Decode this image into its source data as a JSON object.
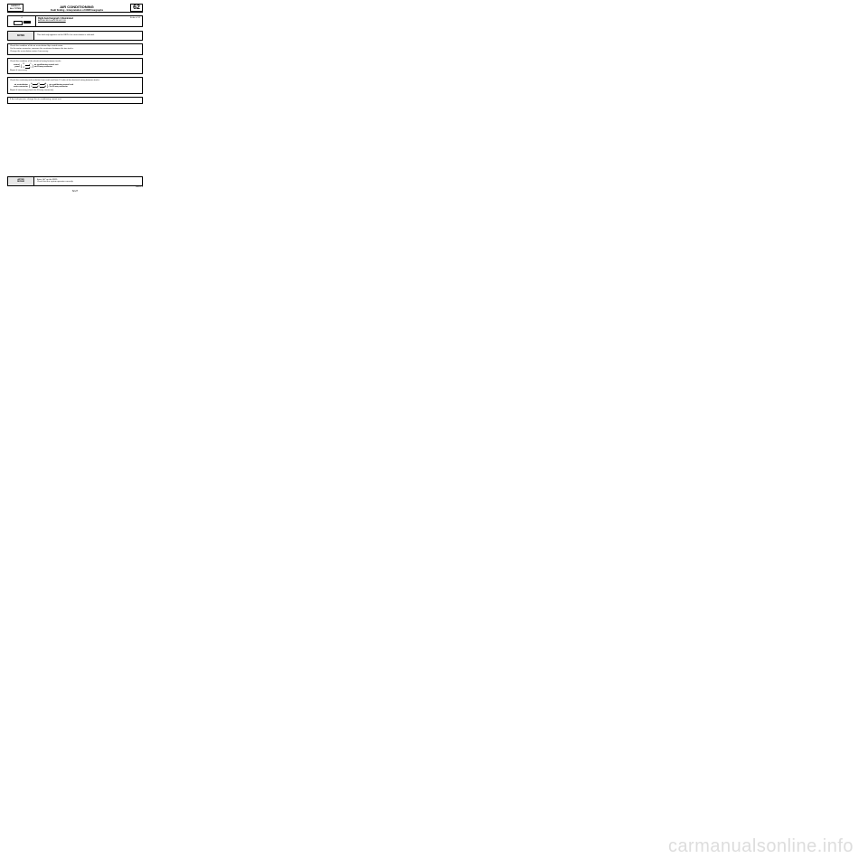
{
  "header": {
    "left": "CA05DCC\nALL TYPES",
    "title": "AIR CONDITIONING",
    "subtitle": "Fault finding - Interpretation of XR25 bargraphs",
    "section_number": "62"
  },
  "bargraph": {
    "number": "4",
    "title": "Right-hand  bargraph  4  illuminated",
    "subtitle": "AIR RECIRCULATION MOTOR",
    "fiche": "Fiche n° 61"
  },
  "notes": {
    "label": "NOTES",
    "text": "This fault only appears on the XR25 if air recirculation is selected."
  },
  "step1": {
    "l1": "Check the condition of the air recirculation flap control motor.",
    "l2": "On the motor connector, measure the resistance between the two tracks.",
    "l3": "Change the recirculation motor if necessary."
  },
  "step2": {
    "l1": "Check the condition of the electrical wiring between tracks:",
    "left_label": "control\npanel",
    "rows": [
      {
        "a": "21",
        "b": "1"
      },
      {
        "a": "22",
        "b": "2"
      }
    ],
    "right_label": "air conditioning control unit\nvia 30-way connector",
    "l2": "Repair if necessary."
  },
  "step3": {
    "l1": "Check the continuity and insulation from earth and from 12 volts of the electrical wiring between tracks:",
    "left_label": "air recirculation\nmotor connector",
    "rows": [
      {
        "a": "A",
        "b": "21",
        "c": "A"
      },
      {
        "a": "B",
        "b": "22",
        "c": "B"
      }
    ],
    "right_label": "air conditioning control unit\nVia 30-way connector",
    "l2": "Repair if necessary (check the 30-way connector)."
  },
  "step4": {
    "text": "If the fault persists, change the air conditioning control unit."
  },
  "after": {
    "label": "AFTER\nREPAIR",
    "l1": "Enter G0* on the XR25",
    "l2": "Check that the system operates correctly."
  },
  "docref": "DI6221.0",
  "page_number": "62-27",
  "watermark": "carmanualsonline.info"
}
